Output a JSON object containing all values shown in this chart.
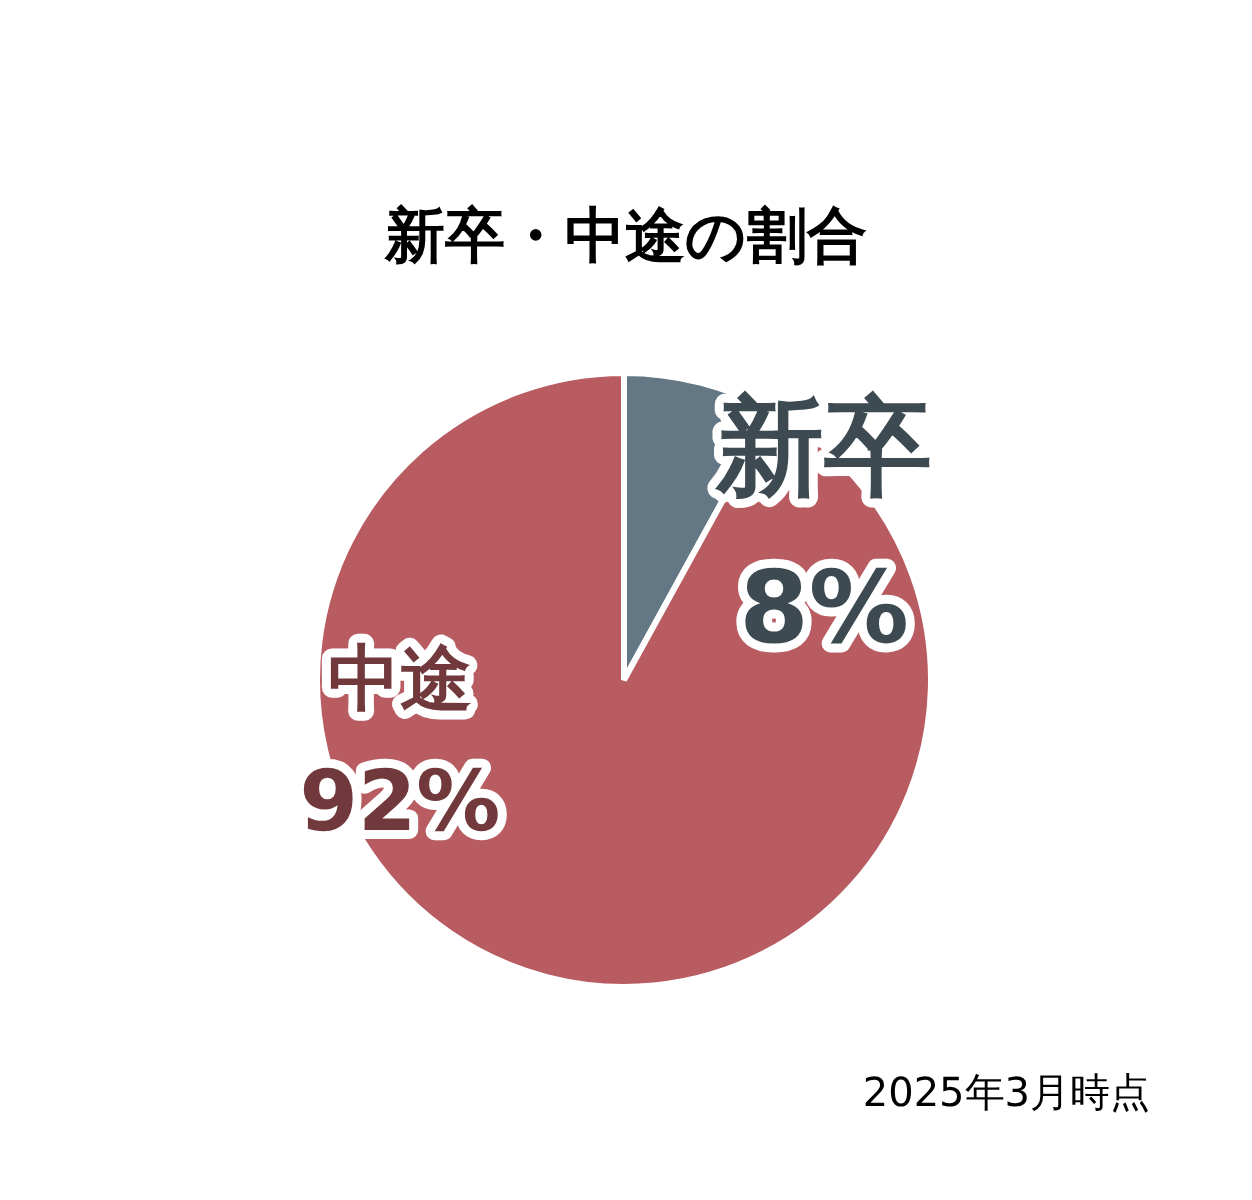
{
  "chart_data": {
    "type": "pie",
    "title": "新卒・中途の割合",
    "categories": [
      "新卒",
      "中途"
    ],
    "values": [
      8,
      92
    ],
    "colors": [
      "#637785",
      "#b85c62"
    ],
    "value_labels": [
      "8%",
      "92%"
    ],
    "legend": false,
    "annotations": [
      "2025年3月時点"
    ]
  }
}
